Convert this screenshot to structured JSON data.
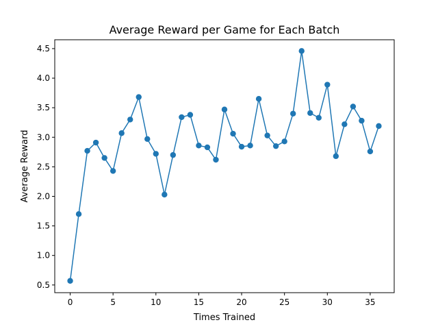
{
  "chart_data": {
    "type": "line",
    "title": "Average Reward per Game for Each Batch",
    "xlabel": "Times Trained",
    "ylabel": "Average Reward",
    "xlim": [
      -1.8,
      37.8
    ],
    "ylim": [
      0.37,
      4.65
    ],
    "xticks": [
      0,
      5,
      10,
      15,
      20,
      25,
      30,
      35
    ],
    "yticks": [
      0.5,
      1.0,
      1.5,
      2.0,
      2.5,
      3.0,
      3.5,
      4.0,
      4.5
    ],
    "grid": false,
    "color": "#1f77b4",
    "marker": "circle",
    "series": [
      {
        "x": [
          0,
          1,
          2,
          3,
          4,
          5,
          6,
          7,
          8,
          9,
          10,
          11,
          12,
          13,
          14,
          15,
          16,
          17,
          18,
          19,
          20,
          21,
          22,
          23,
          24,
          25,
          26,
          27,
          28,
          29,
          30,
          31,
          32,
          33,
          34,
          35,
          36
        ],
        "values": [
          0.57,
          1.7,
          2.77,
          2.91,
          2.65,
          2.43,
          3.07,
          3.3,
          3.68,
          2.97,
          2.72,
          2.03,
          2.7,
          3.34,
          3.38,
          2.86,
          2.83,
          2.62,
          3.47,
          3.06,
          2.84,
          2.86,
          3.65,
          3.03,
          2.85,
          2.93,
          3.4,
          4.46,
          3.41,
          3.33,
          3.89,
          2.68,
          3.22,
          3.52,
          3.28,
          2.76,
          3.19
        ]
      }
    ]
  }
}
